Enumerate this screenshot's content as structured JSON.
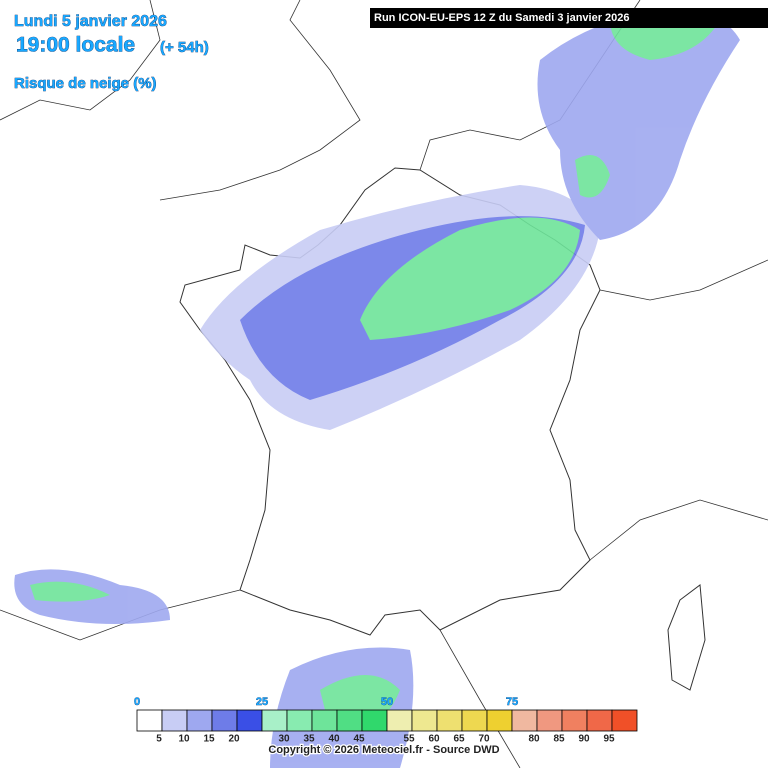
{
  "header": {
    "date": "Lundi 5 janvier 2026",
    "time": "19:00 locale",
    "offset": "(+ 54h)",
    "variable": "Risque de neige (%)"
  },
  "run": "Run ICON-EU-EPS 12 Z du Samedi 3 janvier 2026",
  "legend": {
    "major_labels": [
      0,
      25,
      50,
      75
    ],
    "minor_labels": [
      5,
      10,
      15,
      20,
      30,
      35,
      40,
      45,
      55,
      60,
      65,
      70,
      80,
      85,
      90,
      95
    ],
    "colors": [
      "#ffffff",
      "#c8cdf5",
      "#9ea8f0",
      "#6e7ce8",
      "#3a4fe6",
      "#a8f0c8",
      "#88ebb0",
      "#6ee49a",
      "#50de84",
      "#30d86c",
      "#eeeeb0",
      "#eee890",
      "#eee070",
      "#eed850",
      "#eed030",
      "#f0b8a0",
      "#f09880",
      "#f08060",
      "#f06848",
      "#f05028"
    ]
  },
  "copyright": "Copyright © 2026 Meteociel.fr - Source DWD"
}
